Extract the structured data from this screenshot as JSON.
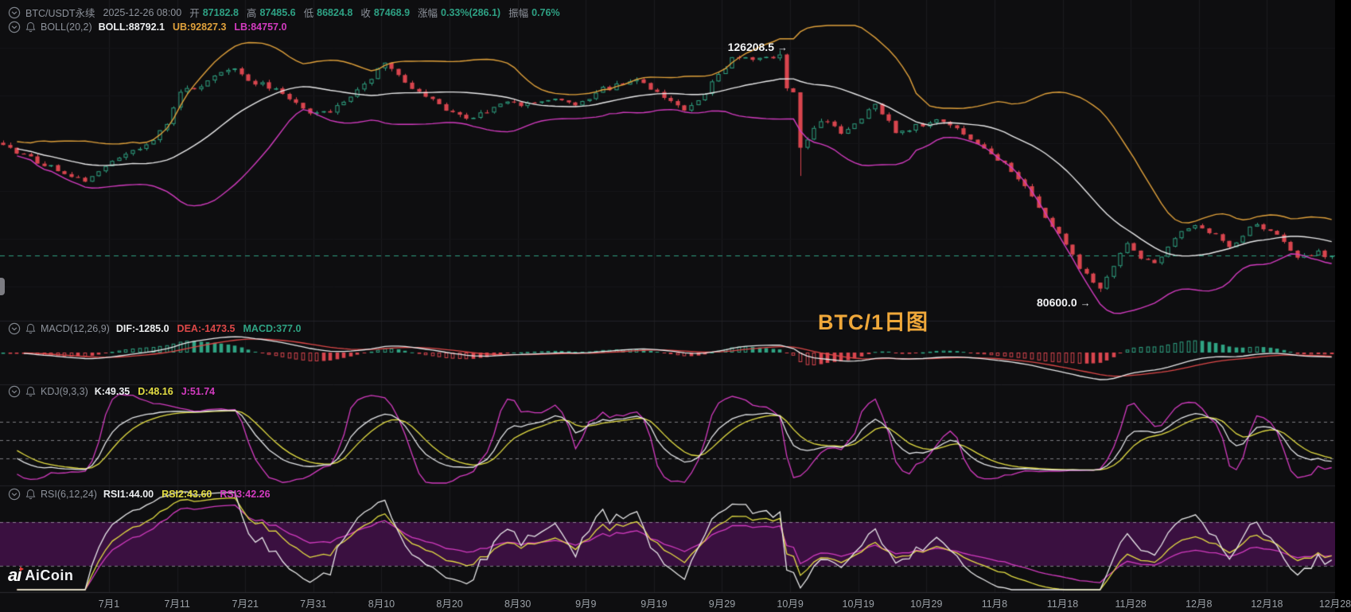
{
  "header": {
    "symbol": "BTC/USDT永续",
    "datetime": "2025-12-26 08:00",
    "fields": [
      {
        "label": "开",
        "value": "87182.8"
      },
      {
        "label": "高",
        "value": "87485.6"
      },
      {
        "label": "低",
        "value": "86824.8"
      },
      {
        "label": "收",
        "value": "87468.9"
      },
      {
        "label": "涨幅",
        "value": "0.33%(286.1)"
      },
      {
        "label": "振幅",
        "value": "0.76%"
      }
    ]
  },
  "boll_header": {
    "name": "BOLL(20,2)",
    "mid": "BOLL:88792.1",
    "ub": "UB:92827.3",
    "lb": "LB:84757.0"
  },
  "macd_header": {
    "name": "MACD(12,26,9)",
    "dif": "DIF:-1285.0",
    "dea": "DEA:-1473.5",
    "macd": "MACD:377.0"
  },
  "kdj_header": {
    "name": "KDJ(9,3,3)",
    "k": "K:49.35",
    "d": "D:48.16",
    "j": "J:51.74"
  },
  "rsi_header": {
    "name": "RSI(6,12,24)",
    "rsi1": "RSI1:44.00",
    "rsi2": "RSI2:43.60",
    "rsi3": "RSI3:42.26"
  },
  "watermark": "BTC/1日图",
  "annotations": {
    "high": {
      "text": "126208.5",
      "arrow": "→"
    },
    "low": {
      "text": "80600.0",
      "arrow": "→"
    }
  },
  "logo": {
    "mark": "ai",
    "brand": "AiCoin"
  },
  "colors": {
    "bg": "#0e0e10",
    "grid": "#1b1b1f",
    "grid_faint": "#151519",
    "separator": "#232329",
    "axis_border": "#2a2a30",
    "up": "#2fa383",
    "down": "#d8454e",
    "boll_mid": "#e9e9ea",
    "boll_ub": "#e0a13b",
    "boll_lb": "#d23bbf",
    "price_line": "#2f9e82",
    "dif": "#e9e9ea",
    "dea": "#dd4848",
    "k": "#e4e6e9",
    "d": "#e3dd43",
    "j": "#d23bbf",
    "rsi1": "#e9e9ea",
    "rsi2": "#e3dd43",
    "rsi3": "#d23bbf",
    "rsi_band": "#3a1040",
    "dashed": "rgba(214,214,220,0.55)",
    "watermark": "#f0a83a"
  },
  "chart_data": {
    "type": "candlestick",
    "symbol": "BTC/USDT永续",
    "interval": "1日",
    "candle_count": 196,
    "ylim_estimate": [
      75500,
      129700
    ],
    "current_price": 87468.9,
    "last_candle": {
      "open": 87182.8,
      "high": 87485.6,
      "low": 86824.8,
      "close": 87468.9
    },
    "change_pct": "0.33%",
    "change_abs": 286.1,
    "amplitude_pct": "0.76%",
    "high_annotation": {
      "price": 126208.5,
      "candle_index": 114
    },
    "low_annotation": {
      "price": 80600.0,
      "candle_index": 161
    },
    "crash_candle": {
      "index": 117,
      "low": 102500
    },
    "indicators": {
      "BOLL": {
        "period": 20,
        "mult": 2,
        "mid": 88792.1,
        "ub": 92827.3,
        "lb": 84757.0
      },
      "MACD": {
        "fast": 12,
        "slow": 26,
        "signal": 9,
        "dif": -1285.0,
        "dea": -1473.5,
        "macd": 377.0
      },
      "KDJ": {
        "params": [
          9,
          3,
          3
        ],
        "k": 49.35,
        "d": 48.16,
        "j": 51.74,
        "gridlines": [
          80,
          50,
          20
        ]
      },
      "RSI": {
        "periods": [
          6,
          12,
          24
        ],
        "rsi1": 44.0,
        "rsi2": 43.6,
        "rsi3": 42.26,
        "band": [
          30,
          70
        ]
      }
    },
    "x_labels": [
      "7月1",
      "7月11",
      "7月21",
      "7月31",
      "8月10",
      "8月20",
      "8月30",
      "9月9",
      "9月19",
      "9月29",
      "10月9",
      "10月19",
      "10月29",
      "11月8",
      "11月18",
      "11月28",
      "12月8",
      "12月18",
      "12月28"
    ],
    "price_anchors": [
      [
        0,
        108000
      ],
      [
        5,
        105200
      ],
      [
        9,
        103000
      ],
      [
        12,
        101100
      ],
      [
        15,
        104500
      ],
      [
        18,
        107000
      ],
      [
        22,
        108800
      ],
      [
        24,
        112500
      ],
      [
        26,
        118000
      ],
      [
        30,
        120500
      ],
      [
        33,
        122800
      ],
      [
        34,
        123200
      ],
      [
        36,
        120500
      ],
      [
        38,
        119800
      ],
      [
        41,
        118200
      ],
      [
        45,
        114200
      ],
      [
        48,
        114800
      ],
      [
        52,
        118500
      ],
      [
        55,
        122500
      ],
      [
        56,
        123800
      ],
      [
        58,
        121500
      ],
      [
        61,
        118200
      ],
      [
        65,
        114800
      ],
      [
        68,
        113200
      ],
      [
        70,
        114000
      ],
      [
        73,
        116400
      ],
      [
        77,
        116000
      ],
      [
        80,
        117000
      ],
      [
        84,
        116200
      ],
      [
        88,
        118800
      ],
      [
        91,
        119800
      ],
      [
        93,
        120900
      ],
      [
        97,
        117200
      ],
      [
        100,
        114800
      ],
      [
        103,
        118500
      ],
      [
        107,
        124400
      ],
      [
        110,
        124600
      ],
      [
        112,
        125000
      ],
      [
        114,
        125400
      ],
      [
        115,
        119500
      ],
      [
        116,
        118500
      ],
      [
        117,
        107500
      ],
      [
        119,
        111500
      ],
      [
        120,
        113200
      ],
      [
        123,
        110800
      ],
      [
        126,
        113500
      ],
      [
        128,
        116400
      ],
      [
        131,
        110900
      ],
      [
        135,
        112200
      ],
      [
        138,
        113200
      ],
      [
        141,
        110500
      ],
      [
        143,
        108400
      ],
      [
        147,
        104600
      ],
      [
        150,
        100500
      ],
      [
        153,
        94700
      ],
      [
        156,
        89500
      ],
      [
        158,
        85200
      ],
      [
        161,
        81200
      ],
      [
        163,
        85500
      ],
      [
        165,
        89900
      ],
      [
        167,
        87000
      ],
      [
        169,
        85900
      ],
      [
        172,
        90800
      ],
      [
        175,
        93600
      ],
      [
        178,
        91200
      ],
      [
        180,
        89100
      ],
      [
        182,
        91500
      ],
      [
        184,
        93600
      ],
      [
        187,
        91200
      ],
      [
        190,
        86700
      ],
      [
        193,
        88200
      ],
      [
        195,
        87469
      ]
    ]
  }
}
